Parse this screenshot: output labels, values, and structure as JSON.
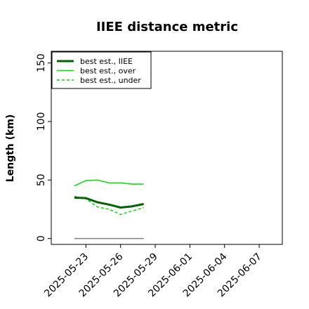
{
  "chart_data": {
    "type": "line",
    "title": "IIEE distance metric",
    "xlabel": "",
    "ylabel": "Length (km)",
    "ylim": [
      -5,
      160
    ],
    "xlim": [
      "2025-05-20",
      "2025-06-09"
    ],
    "y_ticks": [
      0,
      50,
      100,
      150
    ],
    "x_ticks": [
      "2025-05-23",
      "2025-05-26",
      "2025-05-29",
      "2025-06-01",
      "2025-06-04",
      "2025-06-07"
    ],
    "legend_position": "top-left",
    "grid": false,
    "x": [
      "2025-05-22",
      "2025-05-23",
      "2025-05-24",
      "2025-05-25",
      "2025-05-26",
      "2025-05-27",
      "2025-05-28"
    ],
    "series": [
      {
        "name": "best est., IIEE",
        "color": "#006400",
        "style": "solid",
        "width": "thick",
        "values": [
          35,
          34.5,
          31,
          29,
          26.5,
          27.5,
          29.5
        ]
      },
      {
        "name": "best est., over",
        "color": "#00dd00",
        "style": "solid",
        "width": "thin",
        "values": [
          45,
          49.5,
          50,
          47.5,
          47.5,
          46.5,
          46.5
        ]
      },
      {
        "name": "best est., under",
        "color": "#00dd00",
        "style": "dashed",
        "width": "thin",
        "values": [
          36,
          34,
          27,
          25,
          20.5,
          23.5,
          26.5
        ]
      },
      {
        "name": "",
        "color": "#808080",
        "style": "solid",
        "width": "thin",
        "values": [
          0,
          0,
          0,
          0,
          0,
          0,
          0
        ]
      }
    ]
  }
}
